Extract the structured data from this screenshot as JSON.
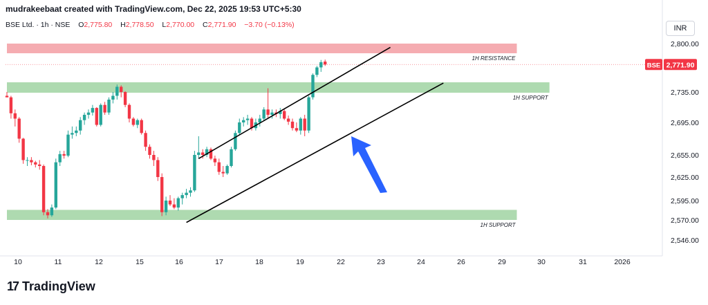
{
  "watermark": "mudrakeebaat created with TradingView.com, Dec 22, 2025 19:53 UTC+5:30",
  "symbol": {
    "title": "BSE Ltd. · 1h · NSE",
    "o_label": "O",
    "o_value": "2,775.80",
    "h_label": "H",
    "h_value": "2,778.50",
    "l_label": "L",
    "l_value": "2,770.00",
    "c_label": "C",
    "c_value": "2,771.90",
    "change": "−3.70 (−0.13%)"
  },
  "currency": "INR",
  "brand": "TradingView",
  "colors": {
    "up": "#26a69a",
    "down": "#f23645",
    "support_zone": "#a5d6a7",
    "resistance_zone": "#f4a3a8",
    "arrow": "#2962ff",
    "price_tag": "#f23645"
  },
  "chart_data": {
    "type": "candlestick",
    "y_ticks": [
      2546,
      2570,
      2595,
      2625,
      2655,
      2695,
      2735,
      2800
    ],
    "y_tick_labels": [
      "2,546.00",
      "2,570.00",
      "2,595.00",
      "2,625.00",
      "2,655.00",
      "2,695.00",
      "2,735.00",
      "2,800.00"
    ],
    "x_ticks": [
      "10",
      "11",
      "12",
      "15",
      "16",
      "17",
      "18",
      "19",
      "22",
      "23",
      "24",
      "26",
      "29",
      "30",
      "31",
      "2026"
    ],
    "last_price": {
      "exchange": "BSE",
      "value": 2771.9,
      "label": "2,771.90"
    },
    "zones": [
      {
        "label": "1H RESISTANCE",
        "kind": "resistance",
        "low": 2787,
        "high": 2800,
        "start": 0,
        "end": 125
      },
      {
        "label": "1H SUPPORT",
        "kind": "support",
        "low": 2734,
        "high": 2748,
        "start": 0,
        "end": 133
      },
      {
        "label": "1H SUPPORT",
        "kind": "support",
        "low": 2570,
        "high": 2583,
        "start": 0,
        "end": 125
      }
    ],
    "channel": [
      {
        "x1": 47,
        "y1": 2650,
        "x2": 94,
        "y2": 2795
      },
      {
        "x1": 44,
        "y1": 2567,
        "x2": 107,
        "y2": 2747
      }
    ],
    "candles": [
      [
        2730,
        2735,
        2728,
        2728
      ],
      [
        2728,
        2730,
        2700,
        2707
      ],
      [
        2707,
        2712,
        2690,
        2700
      ],
      [
        2700,
        2702,
        2670,
        2675
      ],
      [
        2675,
        2676,
        2643,
        2648
      ],
      [
        2648,
        2652,
        2640,
        2648
      ],
      [
        2648,
        2652,
        2641,
        2645
      ],
      [
        2645,
        2647,
        2638,
        2642
      ],
      [
        2642,
        2648,
        2635,
        2640
      ],
      [
        2640,
        2642,
        2576,
        2580
      ],
      [
        2580,
        2584,
        2572,
        2576
      ],
      [
        2576,
        2590,
        2574,
        2586
      ],
      [
        2586,
        2650,
        2584,
        2645
      ],
      [
        2645,
        2660,
        2640,
        2656
      ],
      [
        2656,
        2660,
        2650,
        2654
      ],
      [
        2654,
        2685,
        2652,
        2680
      ],
      [
        2680,
        2690,
        2675,
        2682
      ],
      [
        2682,
        2690,
        2678,
        2685
      ],
      [
        2685,
        2702,
        2680,
        2698
      ],
      [
        2698,
        2708,
        2692,
        2705
      ],
      [
        2705,
        2712,
        2700,
        2708
      ],
      [
        2708,
        2718,
        2704,
        2714
      ],
      [
        2714,
        2715,
        2690,
        2692
      ],
      [
        2692,
        2720,
        2690,
        2718
      ],
      [
        2718,
        2722,
        2705,
        2708
      ],
      [
        2708,
        2728,
        2705,
        2725
      ],
      [
        2725,
        2735,
        2720,
        2730
      ],
      [
        2730,
        2745,
        2725,
        2742
      ],
      [
        2742,
        2744,
        2728,
        2735
      ],
      [
        2735,
        2736,
        2715,
        2718
      ],
      [
        2718,
        2720,
        2695,
        2700
      ],
      [
        2700,
        2702,
        2690,
        2692
      ],
      [
        2692,
        2700,
        2688,
        2698
      ],
      [
        2698,
        2700,
        2680,
        2682
      ],
      [
        2682,
        2685,
        2660,
        2665
      ],
      [
        2665,
        2668,
        2650,
        2655
      ],
      [
        2655,
        2660,
        2640,
        2648
      ],
      [
        2648,
        2652,
        2620,
        2625
      ],
      [
        2625,
        2630,
        2575,
        2580
      ],
      [
        2580,
        2600,
        2576,
        2595
      ],
      [
        2595,
        2602,
        2588,
        2590
      ],
      [
        2590,
        2598,
        2584,
        2586
      ],
      [
        2586,
        2600,
        2582,
        2598
      ],
      [
        2598,
        2605,
        2590,
        2602
      ],
      [
        2602,
        2610,
        2598,
        2605
      ],
      [
        2605,
        2612,
        2600,
        2608
      ],
      [
        2608,
        2660,
        2606,
        2655
      ],
      [
        2655,
        2678,
        2650,
        2658
      ],
      [
        2658,
        2662,
        2650,
        2655
      ],
      [
        2655,
        2665,
        2652,
        2662
      ],
      [
        2662,
        2664,
        2648,
        2650
      ],
      [
        2650,
        2654,
        2640,
        2645
      ],
      [
        2645,
        2650,
        2628,
        2632
      ],
      [
        2632,
        2640,
        2625,
        2630
      ],
      [
        2630,
        2642,
        2628,
        2640
      ],
      [
        2640,
        2665,
        2638,
        2662
      ],
      [
        2662,
        2685,
        2660,
        2682
      ],
      [
        2682,
        2700,
        2680,
        2695
      ],
      [
        2695,
        2702,
        2690,
        2698
      ],
      [
        2698,
        2705,
        2692,
        2700
      ],
      [
        2700,
        2702,
        2685,
        2688
      ],
      [
        2688,
        2700,
        2685,
        2695
      ],
      [
        2695,
        2705,
        2690,
        2700
      ],
      [
        2700,
        2715,
        2698,
        2712
      ],
      [
        2712,
        2740,
        2700,
        2705
      ],
      [
        2705,
        2712,
        2700,
        2708
      ],
      [
        2708,
        2712,
        2702,
        2706
      ],
      [
        2706,
        2714,
        2700,
        2710
      ],
      [
        2710,
        2712,
        2698,
        2700
      ],
      [
        2700,
        2704,
        2692,
        2696
      ],
      [
        2696,
        2700,
        2685,
        2688
      ],
      [
        2688,
        2695,
        2683,
        2685
      ],
      [
        2685,
        2702,
        2680,
        2700
      ],
      [
        2700,
        2705,
        2678,
        2685
      ],
      [
        2685,
        2730,
        2682,
        2728
      ],
      [
        2728,
        2760,
        2725,
        2758
      ],
      [
        2758,
        2770,
        2755,
        2768
      ],
      [
        2768,
        2778,
        2762,
        2775
      ],
      [
        2775.8,
        2778.5,
        2770,
        2771.9
      ]
    ]
  }
}
